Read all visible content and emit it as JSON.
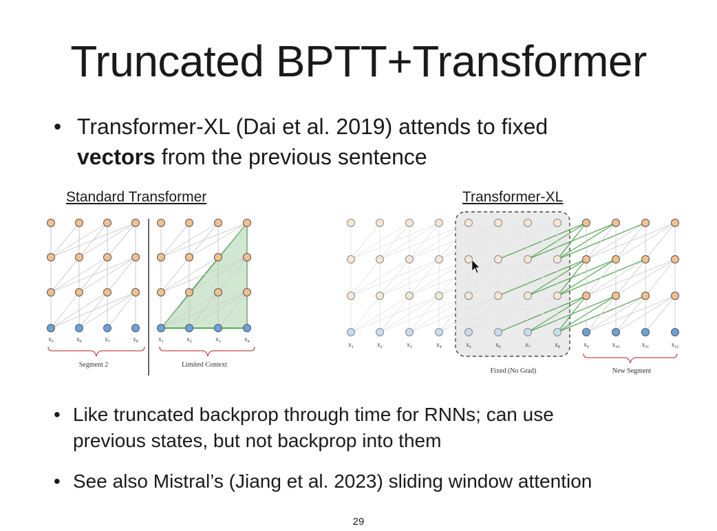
{
  "slide": {
    "title": "Truncated BPTT+Transformer",
    "bullet1": {
      "lead": "Transformer-XL (Dai et al. 2019) attends to fixed",
      "bold": "vectors",
      "rest": " from the previous sentence"
    },
    "bullet2": {
      "text1": "Like truncated backprop through time for RNNs; can use",
      "text2": "previous states, but not backprop into them"
    },
    "bullet3": {
      "text": "See also Mistral’s (Jiang et al. 2023) sliding window attention"
    },
    "page_number": "29"
  },
  "diagram_left": {
    "label": "Standard Transformer",
    "tokens_a": [
      "x5",
      "x6",
      "x7",
      "x8"
    ],
    "tokens_b": [
      "x1",
      "x2",
      "x3",
      "x4"
    ],
    "brace_a": "Segment 2",
    "brace_b": "Limited Context"
  },
  "diagram_right": {
    "label": "Transformer-XL",
    "tokens": [
      "x1",
      "x2",
      "x3",
      "x4",
      "x5",
      "x6",
      "x7",
      "x8",
      "x9",
      "x10",
      "x11",
      "x12"
    ],
    "brace_a": "Fixed (No Grad)",
    "brace_b": "New Segment"
  },
  "colors": {
    "node_orange": "#f2c08e",
    "node_blue": "#6aa3d8",
    "node_faded_orange": "#f5e6d6",
    "node_faded_blue": "#c6dcef",
    "attention_green": "#5aa85a",
    "brace_red": "#c0504d"
  }
}
